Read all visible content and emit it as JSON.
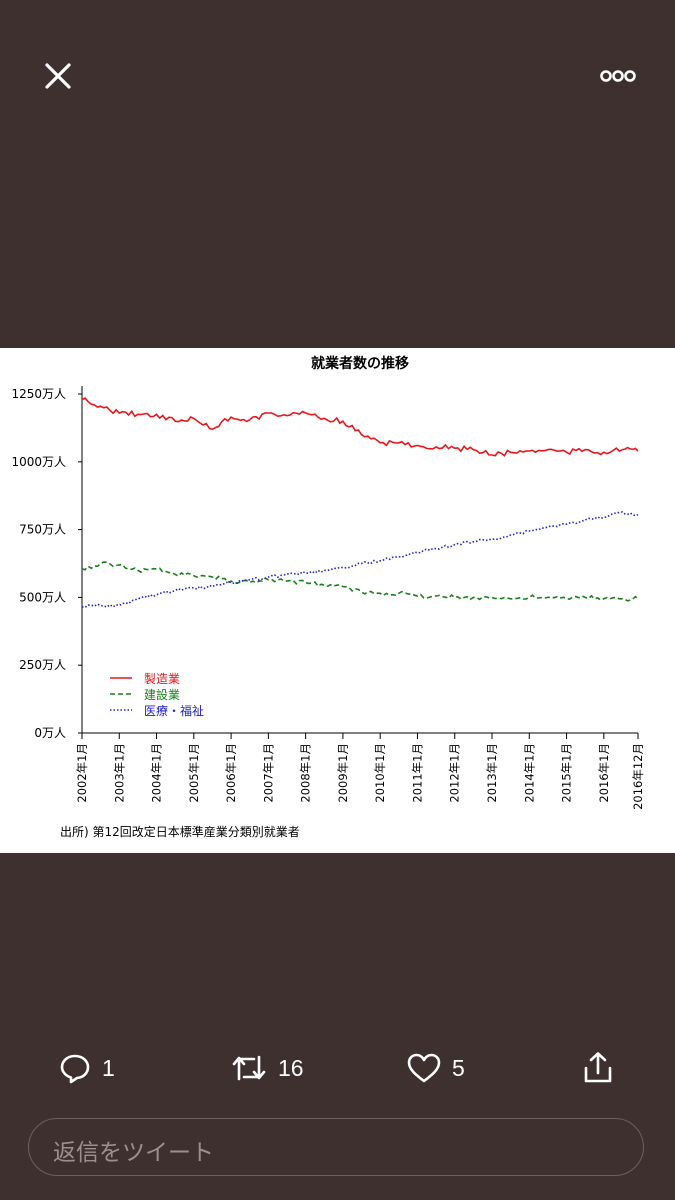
{
  "viewer": {
    "close_icon": "close-icon",
    "more_icon": "more-dots-icon"
  },
  "chart_data": {
    "type": "line",
    "title": "就業者数の推移",
    "y_tick_labels": [
      "0万人",
      "250万人",
      "500万人",
      "750万人",
      "1000万人",
      "1250万人"
    ],
    "y_ticks": [
      0,
      250,
      500,
      750,
      1000,
      1250
    ],
    "ylim": [
      0,
      1250
    ],
    "x_tick_labels": [
      "2002年1月",
      "2003年1月",
      "2004年1月",
      "2005年1月",
      "2006年1月",
      "2007年1月",
      "2008年1月",
      "2009年1月",
      "2010年1月",
      "2011年1月",
      "2012年1月",
      "2013年1月",
      "2014年1月",
      "2015年1月",
      "2016年1月",
      "2016年12月"
    ],
    "xlim": [
      "2002-01",
      "2016-12"
    ],
    "source_note": "出所) 第12回改定日本標準産業分類別就業者",
    "legend_position": "bottom-left",
    "series": [
      {
        "name": "製造業",
        "color": "#e8161b",
        "style": "solid",
        "x": [
          "2002-01",
          "2002-07",
          "2003-01",
          "2003-07",
          "2004-01",
          "2004-07",
          "2005-01",
          "2005-07",
          "2006-01",
          "2006-07",
          "2007-01",
          "2007-07",
          "2008-01",
          "2008-07",
          "2009-01",
          "2009-07",
          "2010-01",
          "2010-07",
          "2011-01",
          "2011-07",
          "2012-01",
          "2012-07",
          "2013-01",
          "2013-07",
          "2014-01",
          "2014-07",
          "2015-01",
          "2015-07",
          "2016-01",
          "2016-07",
          "2016-12"
        ],
        "values": [
          1230,
          1205,
          1180,
          1175,
          1175,
          1150,
          1160,
          1120,
          1165,
          1155,
          1180,
          1170,
          1180,
          1160,
          1150,
          1100,
          1070,
          1070,
          1060,
          1055,
          1050,
          1045,
          1025,
          1035,
          1040,
          1045,
          1035,
          1045,
          1035,
          1045,
          1040
        ]
      },
      {
        "name": "建設業",
        "color": "#1a7f1a",
        "style": "dashed",
        "x": [
          "2002-01",
          "2002-07",
          "2003-01",
          "2003-07",
          "2004-01",
          "2004-07",
          "2005-01",
          "2005-07",
          "2006-01",
          "2006-07",
          "2007-01",
          "2007-07",
          "2008-01",
          "2008-07",
          "2009-01",
          "2009-07",
          "2010-01",
          "2010-07",
          "2011-01",
          "2011-07",
          "2012-01",
          "2012-07",
          "2013-01",
          "2013-07",
          "2014-01",
          "2014-07",
          "2015-01",
          "2015-07",
          "2016-01",
          "2016-07",
          "2016-12"
        ],
        "values": [
          605,
          625,
          620,
          600,
          605,
          585,
          580,
          575,
          560,
          555,
          565,
          560,
          555,
          545,
          540,
          520,
          515,
          515,
          505,
          505,
          500,
          500,
          500,
          495,
          500,
          500,
          495,
          500,
          495,
          495,
          495
        ]
      },
      {
        "name": "医療・福祉",
        "color": "#2020d0",
        "style": "dotted",
        "x": [
          "2002-01",
          "2002-07",
          "2003-01",
          "2003-07",
          "2004-01",
          "2004-07",
          "2005-01",
          "2005-07",
          "2006-01",
          "2006-07",
          "2007-01",
          "2007-07",
          "2008-01",
          "2008-07",
          "2009-01",
          "2009-07",
          "2010-01",
          "2010-07",
          "2011-01",
          "2011-07",
          "2012-01",
          "2012-07",
          "2013-01",
          "2013-07",
          "2014-01",
          "2014-07",
          "2015-01",
          "2015-07",
          "2016-01",
          "2016-07",
          "2016-12"
        ],
        "values": [
          465,
          470,
          470,
          495,
          510,
          525,
          535,
          540,
          555,
          565,
          575,
          585,
          590,
          600,
          610,
          625,
          635,
          650,
          665,
          680,
          695,
          705,
          715,
          730,
          745,
          760,
          770,
          785,
          795,
          815,
          805
        ]
      }
    ]
  },
  "actions": {
    "reply": {
      "icon": "reply-icon",
      "count": "1"
    },
    "retweet": {
      "icon": "retweet-icon",
      "count": "16"
    },
    "like": {
      "icon": "heart-icon",
      "count": "5"
    },
    "share": {
      "icon": "share-icon"
    }
  },
  "reply_box": {
    "placeholder": "返信をツイート"
  }
}
